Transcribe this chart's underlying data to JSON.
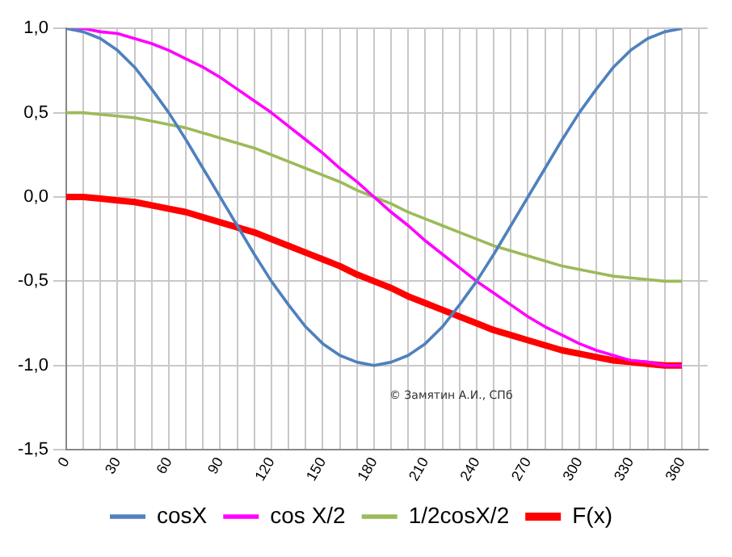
{
  "chart_data": {
    "type": "line",
    "x": [
      0,
      10,
      20,
      30,
      40,
      50,
      60,
      70,
      80,
      90,
      100,
      110,
      120,
      130,
      140,
      150,
      160,
      170,
      180,
      190,
      200,
      210,
      220,
      230,
      240,
      250,
      260,
      270,
      280,
      290,
      300,
      310,
      320,
      330,
      340,
      350,
      360
    ],
    "series": [
      {
        "name": "cosX",
        "color": "#4f81bd",
        "values": [
          1,
          0.98,
          0.94,
          0.87,
          0.77,
          0.64,
          0.5,
          0.34,
          0.17,
          0,
          -0.17,
          -0.34,
          -0.5,
          -0.64,
          -0.77,
          -0.87,
          -0.94,
          -0.98,
          -1,
          -0.98,
          -0.94,
          -0.87,
          -0.77,
          -0.64,
          -0.5,
          -0.34,
          -0.17,
          0,
          0.17,
          0.34,
          0.5,
          0.64,
          0.77,
          0.87,
          0.94,
          0.98,
          1
        ]
      },
      {
        "name": "cos X/2",
        "color": "#ff00ff",
        "values": [
          1,
          1,
          0.98,
          0.97,
          0.94,
          0.91,
          0.87,
          0.82,
          0.77,
          0.71,
          0.64,
          0.57,
          0.5,
          0.42,
          0.34,
          0.26,
          0.17,
          0.09,
          0,
          -0.09,
          -0.17,
          -0.26,
          -0.34,
          -0.42,
          -0.5,
          -0.57,
          -0.64,
          -0.71,
          -0.77,
          -0.82,
          -0.87,
          -0.91,
          -0.94,
          -0.97,
          -0.98,
          -1,
          -1
        ]
      },
      {
        "name": "1/2cosX/2",
        "color": "#9bbb59",
        "values": [
          0.5,
          0.5,
          0.49,
          0.48,
          0.47,
          0.45,
          0.43,
          0.41,
          0.38,
          0.35,
          0.32,
          0.29,
          0.25,
          0.21,
          0.17,
          0.13,
          0.09,
          0.04,
          0,
          -0.04,
          -0.09,
          -0.13,
          -0.17,
          -0.21,
          -0.25,
          -0.29,
          -0.32,
          -0.35,
          -0.38,
          -0.41,
          -0.43,
          -0.45,
          -0.47,
          -0.48,
          -0.49,
          -0.5,
          -0.5
        ]
      },
      {
        "name": "F(x)",
        "color": "#ff0000",
        "values": [
          0,
          0,
          -0.01,
          -0.02,
          -0.03,
          -0.05,
          -0.07,
          -0.09,
          -0.12,
          -0.15,
          -0.18,
          -0.21,
          -0.25,
          -0.29,
          -0.33,
          -0.37,
          -0.41,
          -0.46,
          -0.5,
          -0.54,
          -0.59,
          -0.63,
          -0.67,
          -0.71,
          -0.75,
          -0.79,
          -0.82,
          -0.85,
          -0.88,
          -0.91,
          -0.93,
          -0.95,
          -0.97,
          -0.98,
          -0.99,
          -1,
          -1
        ]
      }
    ],
    "xlim": [
      0,
      375
    ],
    "xticks": [
      0,
      {
        "value": 10,
        "label": null
      },
      {
        "value": 20,
        "label": null
      },
      30,
      {
        "value": 40,
        "label": null
      },
      {
        "value": 50,
        "label": null
      },
      60,
      {
        "value": 70,
        "label": null
      },
      {
        "value": 80,
        "label": null
      },
      90,
      {
        "value": 100,
        "label": null
      },
      {
        "value": 110,
        "label": null
      },
      120,
      {
        "value": 130,
        "label": null
      },
      {
        "value": 140,
        "label": null
      },
      150,
      {
        "value": 160,
        "label": null
      },
      {
        "value": 170,
        "label": null
      },
      180,
      {
        "value": 190,
        "label": null
      },
      {
        "value": 200,
        "label": null
      },
      210,
      {
        "value": 220,
        "label": null
      },
      {
        "value": 230,
        "label": null
      },
      240,
      {
        "value": 250,
        "label": null
      },
      {
        "value": 260,
        "label": null
      },
      270,
      {
        "value": 280,
        "label": null
      },
      {
        "value": 290,
        "label": null
      },
      300,
      {
        "value": 310,
        "label": null
      },
      {
        "value": 320,
        "label": null
      },
      330,
      {
        "value": 340,
        "label": null
      },
      {
        "value": 350,
        "label": null
      },
      360,
      {
        "value": 370,
        "label": null
      }
    ],
    "ylim": [
      -1.5,
      1
    ],
    "yticks": [
      {
        "value": -1.5,
        "label": "-1,5"
      },
      {
        "value": -1,
        "label": "-1,0"
      },
      {
        "value": -0.5,
        "label": "-0,5"
      },
      {
        "value": 0,
        "label": "0,0"
      },
      {
        "value": 0.5,
        "label": "0,5"
      },
      {
        "value": 1,
        "label": "1,0"
      }
    ],
    "grid": true,
    "legend": "bottom",
    "marker": "none",
    "line_style": "solid",
    "annotations": [
      "© Замятин А.И., СПб"
    ]
  }
}
